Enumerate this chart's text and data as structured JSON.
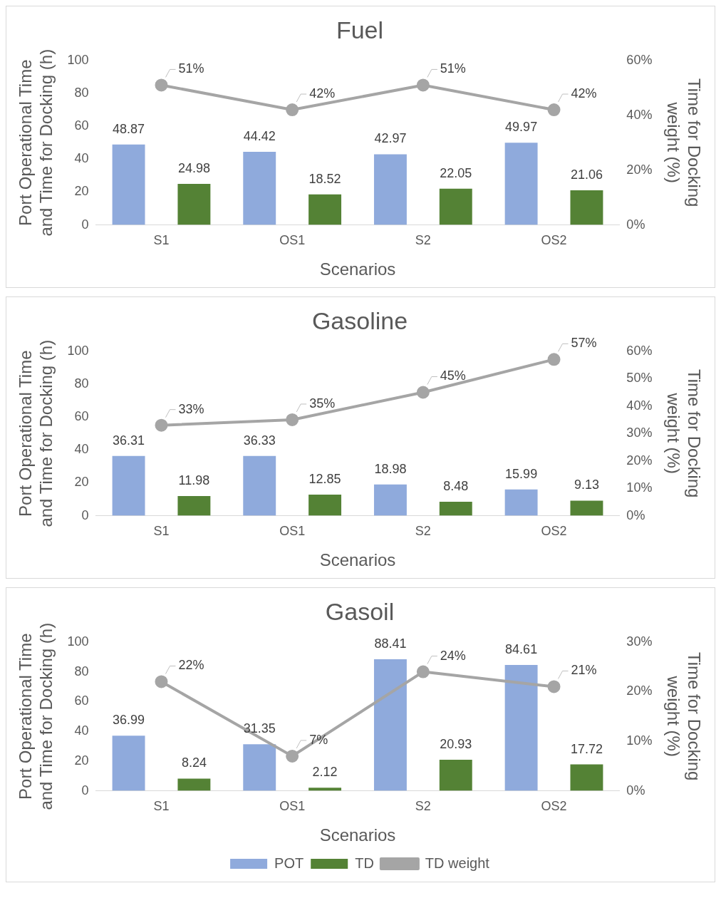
{
  "chart_data": [
    {
      "type": "bar",
      "title": "Fuel",
      "xlabel": "Scenarios",
      "ylabel": "Port Operational Time and Time for Docking (h)",
      "y2label": "Time for Docking weight (%)",
      "categories": [
        "S1",
        "OS1",
        "S2",
        "OS2"
      ],
      "ylim": [
        0,
        100
      ],
      "yticks": [
        0,
        20,
        40,
        60,
        80,
        100
      ],
      "y2lim": [
        0,
        60
      ],
      "y2ticks": [
        {
          "value": 0,
          "label": "0%"
        },
        {
          "value": 20,
          "label": "20%"
        },
        {
          "value": 40,
          "label": "40%"
        },
        {
          "value": 60,
          "label": "60%"
        }
      ],
      "grid": false,
      "series": [
        {
          "color": "#8faadc",
          "values": [
            48.87,
            44.42,
            42.97,
            49.97
          ],
          "value_labels": [
            "48.87",
            "44.42",
            "42.97",
            "49.97"
          ]
        },
        {
          "color": "#548235",
          "values": [
            24.98,
            18.52,
            22.05,
            21.06
          ],
          "value_labels": [
            "24.98",
            "18.52",
            "22.05",
            "21.06"
          ]
        },
        {
          "type": "line",
          "axis": "y2",
          "marker": "circle",
          "color": "#a5a5a5",
          "values": [
            51,
            42,
            51,
            42
          ],
          "value_labels": [
            "51%",
            "42%",
            "51%",
            "42%"
          ]
        }
      ]
    },
    {
      "type": "bar",
      "title": "Gasoline",
      "xlabel": "Scenarios",
      "ylabel": "Port Operational Time and Time for Docking (h)",
      "y2label": "Time for Docking weight (%)",
      "categories": [
        "S1",
        "OS1",
        "S2",
        "OS2"
      ],
      "ylim": [
        0,
        100
      ],
      "yticks": [
        0,
        20,
        40,
        60,
        80,
        100
      ],
      "y2lim": [
        0,
        60
      ],
      "y2ticks": [
        {
          "value": 0,
          "label": "0%"
        },
        {
          "value": 10,
          "label": "10%"
        },
        {
          "value": 20,
          "label": "20%"
        },
        {
          "value": 30,
          "label": "30%"
        },
        {
          "value": 40,
          "label": "40%"
        },
        {
          "value": 50,
          "label": "50%"
        },
        {
          "value": 60,
          "label": "60%"
        }
      ],
      "grid": false,
      "series": [
        {
          "color": "#8faadc",
          "values": [
            36.31,
            36.33,
            18.98,
            15.99
          ],
          "value_labels": [
            "36.31",
            "36.33",
            "18.98",
            "15.99"
          ]
        },
        {
          "color": "#548235",
          "values": [
            11.98,
            12.85,
            8.48,
            9.13
          ],
          "value_labels": [
            "11.98",
            "12.85",
            "8.48",
            "9.13"
          ]
        },
        {
          "type": "line",
          "axis": "y2",
          "marker": "circle",
          "color": "#a5a5a5",
          "values": [
            33,
            35,
            45,
            57
          ],
          "value_labels": [
            "33%",
            "35%",
            "45%",
            "57%"
          ]
        }
      ]
    },
    {
      "type": "bar",
      "title": "Gasoil",
      "xlabel": "Scenarios",
      "ylabel": "Port Operational Time and Time for Docking (h)",
      "y2label": "Time for Docking weight (%)",
      "categories": [
        "S1",
        "OS1",
        "S2",
        "OS2"
      ],
      "ylim": [
        0,
        100
      ],
      "yticks": [
        0,
        20,
        40,
        60,
        80,
        100
      ],
      "y2lim": [
        0,
        30
      ],
      "y2ticks": [
        {
          "value": 0,
          "label": "0%"
        },
        {
          "value": 10,
          "label": "10%"
        },
        {
          "value": 20,
          "label": "20%"
        },
        {
          "value": 30,
          "label": "30%"
        }
      ],
      "grid": false,
      "legend": "bottom",
      "series": [
        {
          "name": "POT",
          "color": "#8faadc",
          "values": [
            36.99,
            31.35,
            88.41,
            84.61
          ],
          "value_labels": [
            "36.99",
            "31.35",
            "88.41",
            "84.61"
          ]
        },
        {
          "name": "TD",
          "color": "#548235",
          "values": [
            8.24,
            2.12,
            20.93,
            17.72
          ],
          "value_labels": [
            "8.24",
            "2.12",
            "20.93",
            "17.72"
          ]
        },
        {
          "name": "TD weight",
          "type": "line",
          "axis": "y2",
          "marker": "circle",
          "color": "#a5a5a5",
          "values": [
            22,
            7,
            24,
            21
          ],
          "value_labels": [
            "22%",
            "7%",
            "24%",
            "21%"
          ]
        }
      ]
    }
  ]
}
